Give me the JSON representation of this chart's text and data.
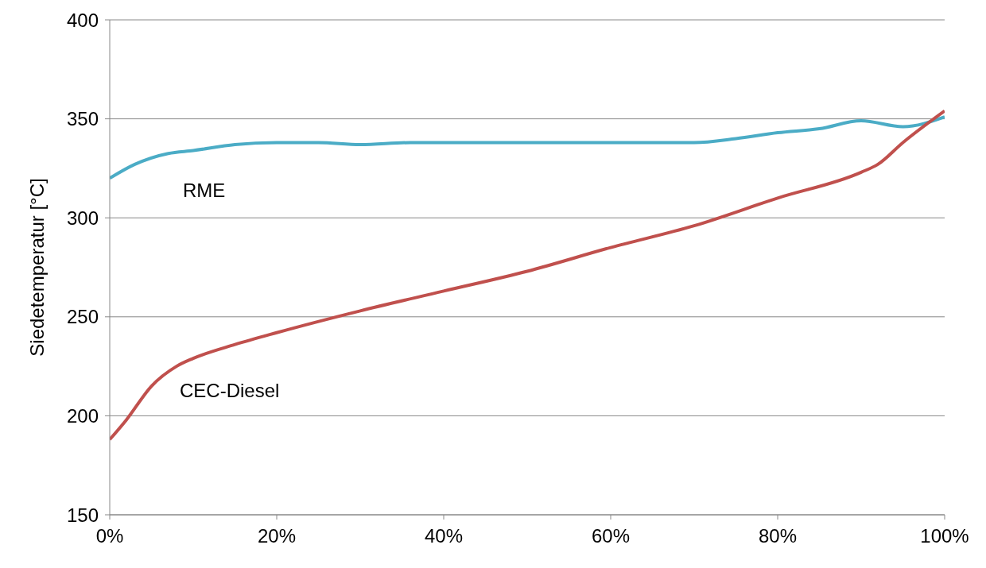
{
  "chart_data": {
    "type": "line",
    "ylabel": "Siedetemperatur [°C]",
    "xlim": [
      0,
      100
    ],
    "xticks": [
      {
        "value": 0,
        "label": "0%"
      },
      {
        "value": 20,
        "label": "20%"
      },
      {
        "value": 40,
        "label": "40%"
      },
      {
        "value": 60,
        "label": "60%"
      },
      {
        "value": 80,
        "label": "80%"
      },
      {
        "value": 100,
        "label": "100%"
      }
    ],
    "ylim": [
      150,
      400
    ],
    "yticks": [
      150,
      200,
      250,
      300,
      350,
      400
    ],
    "grid": "y",
    "marker": "none",
    "line_style": "solid",
    "series": [
      {
        "name": "RME",
        "color": "#4bacc6",
        "x": [
          0,
          3,
          7,
          10,
          15,
          20,
          25,
          30,
          36,
          45,
          55,
          65,
          70,
          75,
          80,
          85,
          90,
          95,
          100
        ],
        "values": [
          320,
          327,
          332.5,
          334,
          337,
          338,
          338,
          337,
          338,
          338,
          338,
          338,
          338,
          340,
          343,
          345,
          349,
          346,
          351
        ]
      },
      {
        "name": "CEC-Diesel",
        "color": "#c0504d",
        "x": [
          0,
          2,
          5,
          8,
          10,
          15,
          20,
          30,
          40,
          50,
          60,
          70,
          80,
          90,
          92,
          95,
          100
        ],
        "values": [
          188,
          198,
          215,
          225,
          229,
          236,
          242,
          253,
          263,
          273,
          285,
          296,
          310,
          323,
          327,
          338,
          354
        ]
      }
    ]
  }
}
